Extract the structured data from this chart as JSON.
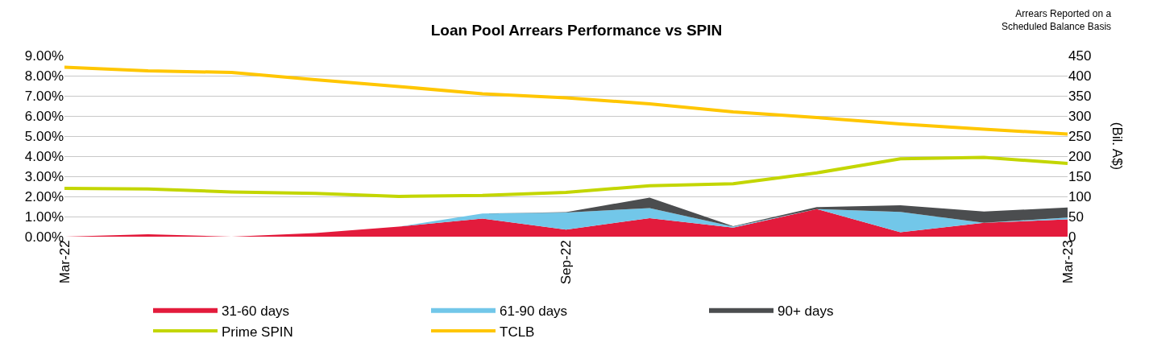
{
  "chart_data": {
    "type": "area",
    "title": "Loan Pool Arrears Performance vs SPIN",
    "y2label": "(Bil. A$)",
    "annotations": [
      "Arrears Reported on a\nScheduled Balance Basis"
    ],
    "categories": [
      "Mar-22",
      null,
      null,
      null,
      null,
      null,
      "Sep-22",
      null,
      null,
      null,
      null,
      null,
      "Mar-23"
    ],
    "stacked": true,
    "grid": "y",
    "legend": "bottom",
    "marker": "none",
    "line_style": "solid",
    "ylim": [
      0,
      9
    ],
    "yticks": [
      {
        "value": 0,
        "label": "0.00%"
      },
      {
        "value": 1,
        "label": "1.00%"
      },
      {
        "value": 2,
        "label": "2.00%"
      },
      {
        "value": 3,
        "label": "3.00%"
      },
      {
        "value": 4,
        "label": "4.00%"
      },
      {
        "value": 5,
        "label": "5.00%"
      },
      {
        "value": 6,
        "label": "6.00%"
      },
      {
        "value": 7,
        "label": "7.00%"
      },
      {
        "value": 8,
        "label": "8.00%"
      },
      {
        "value": 9,
        "label": "9.00%"
      }
    ],
    "y2lim": [
      0,
      450
    ],
    "y2ticks": [
      0,
      50,
      100,
      150,
      200,
      250,
      300,
      350,
      400,
      450
    ],
    "series": [
      {
        "name": "31-60 days",
        "color": "#e31b3c",
        "values": [
          0,
          0.12,
          0,
          0.18,
          0.5,
          0.9,
          0.35,
          0.92,
          0.45,
          1.37,
          0.22,
          0.69,
          0.86
        ]
      },
      {
        "name": "61-90 days",
        "color": "#72c7e9",
        "values": [
          0,
          0,
          0,
          0,
          0,
          0.25,
          0.85,
          0.5,
          0.05,
          0,
          1.01,
          0,
          0.09
        ]
      },
      {
        "name": "90+ days",
        "color": "#4b4d4f",
        "values": [
          0,
          0,
          0,
          0,
          0,
          0,
          0.02,
          0.52,
          0.02,
          0.1,
          0.33,
          0.56,
          0.5
        ]
      },
      {
        "name": "Prime SPIN",
        "type": "line",
        "color": "#c3d600",
        "values": [
          2.4,
          2.37,
          2.22,
          2.15,
          2.0,
          2.05,
          2.2,
          2.53,
          2.63,
          3.17,
          3.87,
          3.94,
          3.64
        ]
      },
      {
        "name": "TCLB",
        "type": "line",
        "axis": "y2",
        "color": "#ffc600",
        "values": [
          421,
          412,
          408,
          390,
          373,
          355,
          345,
          330,
          310,
          296,
          280,
          267,
          255
        ]
      }
    ]
  }
}
